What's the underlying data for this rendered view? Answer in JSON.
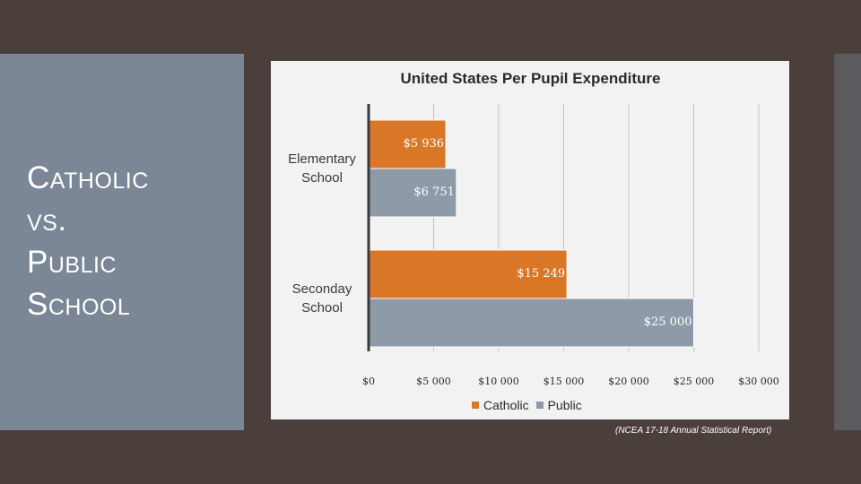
{
  "slide": {
    "title_lines": [
      "Catholic",
      "vs.",
      "Public",
      "School"
    ],
    "citation": "(NCEA 17-18 Annual Statistical Report)"
  },
  "chart_data": {
    "type": "bar",
    "orientation": "horizontal",
    "title": "United States Per Pupil Expenditure",
    "categories": [
      "Elementary School",
      "Seconday School"
    ],
    "series": [
      {
        "name": "Catholic",
        "color": "#d97726",
        "values": [
          5936,
          15249
        ],
        "labels": [
          "$5 936",
          "$15 249"
        ]
      },
      {
        "name": "Public",
        "color": "#8e9aa8",
        "values": [
          6751,
          25000
        ],
        "labels": [
          "$6 751",
          "$25 000"
        ]
      }
    ],
    "xlim": [
      0,
      30000
    ],
    "xticks": [
      0,
      5000,
      10000,
      15000,
      20000,
      25000,
      30000
    ],
    "xtick_labels": [
      "$0",
      "$5 000",
      "$10 000",
      "$15 000",
      "$20 000",
      "$25 000",
      "$30 000"
    ],
    "grid": true,
    "legend": "bottom"
  }
}
